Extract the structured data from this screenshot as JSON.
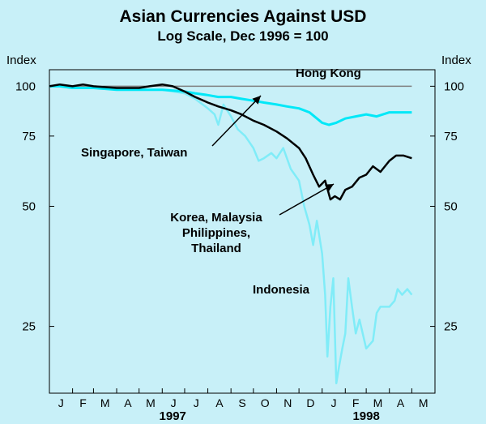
{
  "chart_data": {
    "type": "line",
    "title": "Asian Currencies Against USD",
    "subtitle": "Log Scale, Dec 1996 = 100",
    "ylabel_left": "Index",
    "ylabel_right": "Index",
    "yscale": "log",
    "ylim": [
      17,
      110
    ],
    "yticks": [
      25,
      50,
      75,
      100
    ],
    "x_start": "1997-01-01",
    "x_end": "1998-06-01",
    "month_labels": [
      "J",
      "F",
      "M",
      "A",
      "M",
      "J",
      "J",
      "A",
      "S",
      "O",
      "N",
      "D",
      "J",
      "F",
      "M",
      "A",
      "M"
    ],
    "year_labels": [
      {
        "label": "1997",
        "at": "1997-06-15"
      },
      {
        "label": "1998",
        "at": "1998-03-01"
      }
    ],
    "series": [
      {
        "name": "Hong Kong",
        "color": "#808080",
        "points": [
          [
            "1997-01-01",
            100
          ],
          [
            "1997-02-01",
            100
          ],
          [
            "1997-03-01",
            100
          ],
          [
            "1997-04-01",
            100
          ],
          [
            "1997-05-01",
            100
          ],
          [
            "1997-06-01",
            100
          ],
          [
            "1997-07-01",
            100
          ],
          [
            "1997-08-01",
            100
          ],
          [
            "1997-09-01",
            100
          ],
          [
            "1997-10-01",
            100
          ],
          [
            "1997-11-01",
            100
          ],
          [
            "1997-12-01",
            100
          ],
          [
            "1998-01-01",
            100
          ],
          [
            "1998-02-01",
            100
          ],
          [
            "1998-03-01",
            100
          ],
          [
            "1998-04-01",
            100
          ],
          [
            "1998-05-01",
            100
          ]
        ]
      },
      {
        "name": "Singapore, Taiwan",
        "color": "#00e8f8",
        "points": [
          [
            "1997-01-01",
            100
          ],
          [
            "1997-01-15",
            100
          ],
          [
            "1997-02-01",
            99
          ],
          [
            "1997-03-01",
            99
          ],
          [
            "1997-04-01",
            98
          ],
          [
            "1997-05-01",
            98
          ],
          [
            "1997-06-01",
            98
          ],
          [
            "1997-07-01",
            97
          ],
          [
            "1997-07-15",
            96
          ],
          [
            "1997-08-01",
            95
          ],
          [
            "1997-08-15",
            94
          ],
          [
            "1997-09-01",
            94
          ],
          [
            "1997-09-15",
            93
          ],
          [
            "1997-10-01",
            92
          ],
          [
            "1997-10-15",
            91
          ],
          [
            "1997-11-01",
            90
          ],
          [
            "1997-11-15",
            89
          ],
          [
            "1997-12-01",
            88
          ],
          [
            "1997-12-15",
            86
          ],
          [
            "1998-01-01",
            81
          ],
          [
            "1998-01-10",
            80
          ],
          [
            "1998-01-20",
            81
          ],
          [
            "1998-02-01",
            83
          ],
          [
            "1998-02-15",
            84
          ],
          [
            "1998-03-01",
            85
          ],
          [
            "1998-03-15",
            84
          ],
          [
            "1998-04-01",
            86
          ],
          [
            "1998-04-15",
            86
          ],
          [
            "1998-05-01",
            86
          ]
        ]
      },
      {
        "name": "Korea, Malaysia Philippines, Thailand",
        "color": "#000000",
        "points": [
          [
            "1997-01-01",
            100
          ],
          [
            "1997-01-15",
            101
          ],
          [
            "1997-02-01",
            100
          ],
          [
            "1997-02-15",
            101
          ],
          [
            "1997-03-01",
            100
          ],
          [
            "1997-04-01",
            99
          ],
          [
            "1997-05-01",
            99
          ],
          [
            "1997-05-15",
            100
          ],
          [
            "1997-06-01",
            101
          ],
          [
            "1997-06-15",
            100
          ],
          [
            "1997-07-01",
            97
          ],
          [
            "1997-07-15",
            94
          ],
          [
            "1997-08-01",
            91
          ],
          [
            "1997-08-15",
            89
          ],
          [
            "1997-09-01",
            87
          ],
          [
            "1997-09-15",
            85
          ],
          [
            "1997-10-01",
            82
          ],
          [
            "1997-10-15",
            80
          ],
          [
            "1997-11-01",
            77
          ],
          [
            "1997-11-15",
            74
          ],
          [
            "1997-12-01",
            70
          ],
          [
            "1997-12-10",
            66
          ],
          [
            "1997-12-20",
            60
          ],
          [
            "1997-12-28",
            56
          ],
          [
            "1998-01-05",
            58
          ],
          [
            "1998-01-12",
            52
          ],
          [
            "1998-01-18",
            53
          ],
          [
            "1998-01-25",
            52
          ],
          [
            "1998-02-01",
            55
          ],
          [
            "1998-02-10",
            56
          ],
          [
            "1998-02-20",
            59
          ],
          [
            "1998-03-01",
            60
          ],
          [
            "1998-03-10",
            63
          ],
          [
            "1998-03-20",
            61
          ],
          [
            "1998-04-01",
            65
          ],
          [
            "1998-04-10",
            67
          ],
          [
            "1998-04-20",
            67
          ],
          [
            "1998-05-01",
            66
          ]
        ]
      },
      {
        "name": "Indonesia",
        "color": "#80ecf8",
        "points": [
          [
            "1997-01-01",
            100
          ],
          [
            "1997-02-01",
            100
          ],
          [
            "1997-03-01",
            99
          ],
          [
            "1997-04-01",
            99
          ],
          [
            "1997-05-01",
            98
          ],
          [
            "1997-06-01",
            98
          ],
          [
            "1997-07-01",
            96
          ],
          [
            "1997-07-15",
            93
          ],
          [
            "1997-08-01",
            88
          ],
          [
            "1997-08-10",
            85
          ],
          [
            "1997-08-15",
            80
          ],
          [
            "1997-08-22",
            90
          ],
          [
            "1997-09-01",
            84
          ],
          [
            "1997-09-10",
            78
          ],
          [
            "1997-09-20",
            75
          ],
          [
            "1997-10-01",
            70
          ],
          [
            "1997-10-08",
            65
          ],
          [
            "1997-10-15",
            66
          ],
          [
            "1997-10-25",
            68
          ],
          [
            "1997-11-01",
            66
          ],
          [
            "1997-11-10",
            70
          ],
          [
            "1997-11-20",
            62
          ],
          [
            "1997-12-01",
            58
          ],
          [
            "1997-12-08",
            50
          ],
          [
            "1997-12-15",
            45
          ],
          [
            "1997-12-20",
            40
          ],
          [
            "1997-12-25",
            46
          ],
          [
            "1998-01-01",
            38
          ],
          [
            "1998-01-05",
            30
          ],
          [
            "1998-01-08",
            21
          ],
          [
            "1998-01-12",
            28
          ],
          [
            "1998-01-16",
            33
          ],
          [
            "1998-01-20",
            18
          ],
          [
            "1998-01-24",
            20
          ],
          [
            "1998-01-28",
            22
          ],
          [
            "1998-02-01",
            24
          ],
          [
            "1998-02-05",
            33
          ],
          [
            "1998-02-10",
            28
          ],
          [
            "1998-02-15",
            24
          ],
          [
            "1998-02-20",
            26
          ],
          [
            "1998-03-01",
            22
          ],
          [
            "1998-03-10",
            23
          ],
          [
            "1998-03-15",
            27
          ],
          [
            "1998-03-20",
            28
          ],
          [
            "1998-04-01",
            28
          ],
          [
            "1998-04-08",
            29
          ],
          [
            "1998-04-12",
            31
          ],
          [
            "1998-04-18",
            30
          ],
          [
            "1998-04-25",
            31
          ],
          [
            "1998-05-01",
            30
          ]
        ]
      }
    ],
    "annotations": [
      {
        "text_lines": [
          "Hong Kong"
        ]
      },
      {
        "text_lines": [
          "Singapore, Taiwan"
        ]
      },
      {
        "text_lines": [
          "Korea, Malaysia",
          "Philippines,",
          "Thailand"
        ]
      },
      {
        "text_lines": [
          "Indonesia"
        ]
      }
    ]
  }
}
